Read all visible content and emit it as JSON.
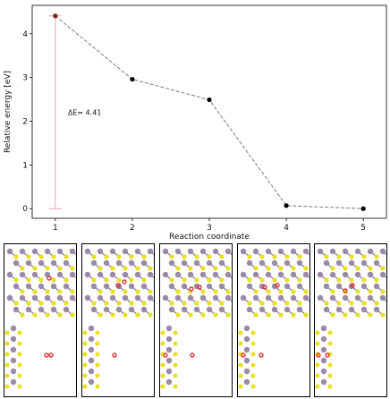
{
  "colors": {
    "line": "#7a7a7a",
    "marker": "#000000",
    "first_marker": "#8b1a1a",
    "bar": "#f0a0a8",
    "mo_atom": "#9a8aa8",
    "s_atom": "#e8e020",
    "o_atom": "#e03030"
  },
  "chart_data": {
    "type": "line",
    "x": [
      1,
      2,
      3,
      4,
      5
    ],
    "y": [
      4.41,
      2.96,
      2.49,
      0.07,
      0.0
    ],
    "xlabel": "Reaction coordinate",
    "ylabel": "Relative energy [eV]",
    "xticks": [
      "1",
      "2",
      "3",
      "4",
      "5"
    ],
    "yticks": [
      "0",
      "1",
      "2",
      "3",
      "4"
    ],
    "xlim": [
      0.7,
      5.3
    ],
    "ylim": [
      -0.22,
      4.65
    ],
    "grid": false,
    "line_style": "dashed",
    "annotation": {
      "text": "ΔE= 4.41",
      "x": 1,
      "y_from": 0,
      "y_to": 4.41
    }
  },
  "structures": {
    "count": 5,
    "description_icons": [
      "structure-panel-1",
      "structure-panel-2",
      "structure-panel-3",
      "structure-panel-4",
      "structure-panel-5"
    ]
  }
}
